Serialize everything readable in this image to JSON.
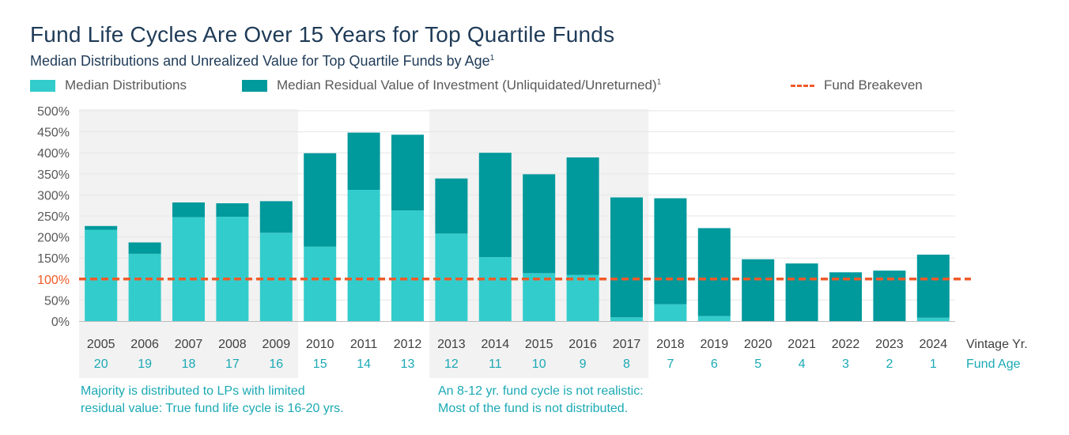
{
  "title": "Fund Life Cycles Are Over 15 Years for Top Quartile Funds",
  "subtitle": "Median Distributions and Unrealized Value for Top Quartile Funds by Age",
  "subtitle_sup": "1",
  "legend": {
    "distributions": "Median Distributions",
    "residual": "Median Residual Value of Investment (Unliquidated/Unreturned)",
    "residual_sup": "1",
    "breakeven": "Fund Breakeven"
  },
  "colors": {
    "distributions": "#33cccc",
    "residual": "#00999c",
    "breakeven": "#f05a28",
    "shade": "#f2f2f2",
    "fund_age": "#1ba9b4",
    "title": "#1f3b57"
  },
  "notes": {
    "left": "Majority is distributed to LPs with limited\nresidual value: True fund life cycle is 16-20 yrs.",
    "right": "An 8-12 yr. fund cycle is not realistic:\nMost of the fund is not distributed."
  },
  "chart_data": {
    "type": "bar",
    "stacked": true,
    "title": "Fund Life Cycles Are Over 15 Years for Top Quartile Funds",
    "categories": [
      "2005",
      "2006",
      "2007",
      "2008",
      "2009",
      "2010",
      "2011",
      "2012",
      "2013",
      "2014",
      "2015",
      "2016",
      "2017",
      "2018",
      "2019",
      "2020",
      "2021",
      "2022",
      "2023",
      "2024"
    ],
    "fund_age": [
      "20",
      "19",
      "18",
      "17",
      "16",
      "15",
      "14",
      "13",
      "12",
      "11",
      "10",
      "9",
      "8",
      "7",
      "6",
      "5",
      "4",
      "3",
      "2",
      "1"
    ],
    "xlabel_vintage": "Vintage Yr.",
    "xlabel_age": "Fund Age",
    "ylim": [
      0,
      500
    ],
    "y_ticks": [
      0,
      50,
      100,
      150,
      200,
      250,
      300,
      350,
      400,
      450,
      500
    ],
    "y_tick_labels": [
      "0%",
      "50%",
      "100%",
      "150%",
      "200%",
      "250%",
      "300%",
      "350%",
      "400%",
      "450%",
      "500%"
    ],
    "series": [
      {
        "name": "Median Distributions",
        "values": [
          217,
          160,
          247,
          248,
          210,
          177,
          312,
          263,
          208,
          152,
          114,
          110,
          9,
          40,
          12,
          0,
          0,
          0,
          0,
          8
        ]
      },
      {
        "name": "Median Residual Value of Investment (Unliquidated/Unreturned)",
        "values": [
          9,
          27,
          35,
          32,
          75,
          222,
          136,
          180,
          131,
          248,
          235,
          279,
          285,
          252,
          209,
          147,
          137,
          116,
          120,
          150
        ]
      }
    ],
    "reference_line": {
      "name": "Fund Breakeven",
      "value": 100
    },
    "shaded_bands": [
      {
        "from": "2005",
        "to": "2009"
      },
      {
        "from": "2013",
        "to": "2017"
      }
    ]
  }
}
